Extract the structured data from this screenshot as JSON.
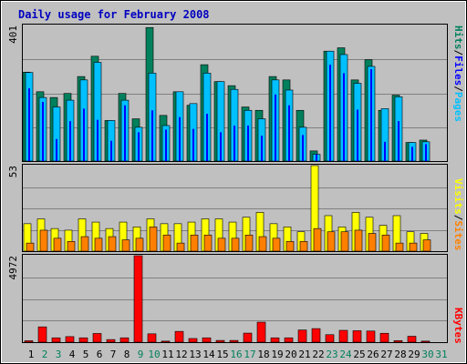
{
  "chart_data": [
    {
      "type": "bar",
      "title": "Daily usage for February 2008",
      "ymax_label": "401",
      "series": [
        {
          "name": "Hits",
          "color": "#00805c",
          "values": [
            263,
            205,
            188,
            200,
            250,
            310,
            120,
            200,
            125,
            395,
            135,
            205,
            165,
            285,
            235,
            223,
            160,
            150,
            250,
            240,
            150,
            30,
            325,
            335,
            240,
            300,
            150,
            195,
            55,
            62
          ]
        },
        {
          "name": "Files",
          "color": "#00c0ff",
          "values": [
            262,
            188,
            160,
            180,
            240,
            292,
            120,
            180,
            100,
            260,
            105,
            205,
            170,
            260,
            235,
            212,
            150,
            125,
            240,
            210,
            100,
            20,
            325,
            315,
            230,
            280,
            155,
            190,
            55,
            57
          ]
        },
        {
          "name": "Pages",
          "color": "#0000ff",
          "values": [
            215,
            175,
            65,
            118,
            155,
            122,
            60,
            165,
            85,
            150,
            93,
            130,
            95,
            140,
            85,
            105,
            105,
            75,
            197,
            165,
            77,
            20,
            285,
            260,
            152,
            272,
            57,
            118,
            42,
            50
          ]
        }
      ],
      "xlabel_days": [
        "1",
        "2",
        "3",
        "4",
        "5",
        "6",
        "7",
        "8",
        "9",
        "10",
        "11",
        "12",
        "13",
        "14",
        "15",
        "16",
        "17",
        "18",
        "19",
        "20",
        "21",
        "22",
        "23",
        "24",
        "25",
        "26",
        "27",
        "28",
        "29",
        "30",
        "31"
      ],
      "weekend_days": [
        2,
        3,
        9,
        10,
        16,
        17,
        23,
        24,
        30,
        31
      ]
    },
    {
      "type": "bar",
      "ymax_label": "53",
      "series": [
        {
          "name": "Visits",
          "color": "#ffff00",
          "values": [
            17,
            20,
            14,
            13,
            20,
            18,
            14,
            18,
            15,
            20,
            17,
            17,
            18,
            20,
            20,
            18,
            21,
            24,
            17,
            15,
            12,
            53,
            22,
            15,
            24,
            21,
            16,
            22,
            12,
            11
          ]
        },
        {
          "name": "Sites",
          "color": "#ff8000",
          "values": [
            5,
            13,
            8,
            6,
            9,
            8,
            9,
            7,
            8,
            15,
            10,
            5,
            10,
            10,
            8,
            8,
            10,
            9,
            8,
            6,
            6,
            14,
            12,
            12,
            13,
            11,
            10,
            5,
            5,
            7
          ]
        }
      ]
    },
    {
      "type": "bar",
      "ymax_label": "4972",
      "series": [
        {
          "name": "KBytes",
          "color": "#ff0000",
          "values": [
            80,
            880,
            250,
            320,
            250,
            500,
            150,
            250,
            4972,
            480,
            60,
            620,
            210,
            250,
            100,
            100,
            520,
            1150,
            250,
            250,
            700,
            780,
            430,
            680,
            660,
            640,
            510,
            90,
            340,
            60
          ]
        }
      ]
    }
  ],
  "legend": {
    "top": [
      "Pages",
      "/",
      "Files",
      "/",
      "Hits"
    ],
    "mid": [
      "Sites",
      "/",
      "Visits"
    ],
    "bottom": "KBytes"
  },
  "colors": {
    "background": "#c0c0c0",
    "title": "#0000c0",
    "gridline": "#808080",
    "weekday_label": "#000000",
    "weekend_label": "#00805c"
  }
}
